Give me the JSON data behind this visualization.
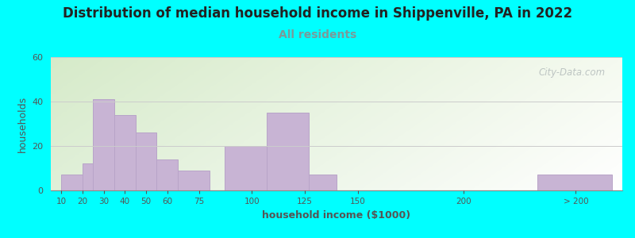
{
  "title": "Distribution of median household income in Shippenville, PA in 2022",
  "subtitle": "All residents",
  "xlabel": "household income ($1000)",
  "ylabel": "households",
  "background_outer": "#00FFFF",
  "bar_color": "#C8B4D4",
  "bar_edge_color": "#B8A4C8",
  "ylim": [
    0,
    60
  ],
  "yticks": [
    0,
    20,
    40,
    60
  ],
  "title_fontsize": 12,
  "subtitle_fontsize": 10,
  "axis_label_fontsize": 9,
  "watermark": "City-Data.com",
  "bar_lefts": [
    10,
    20,
    25,
    35,
    45,
    55,
    65,
    87,
    107,
    127,
    140,
    195,
    235
  ],
  "bar_rights": [
    20,
    25,
    35,
    45,
    55,
    65,
    80,
    107,
    127,
    140,
    160,
    220,
    270
  ],
  "bar_values": [
    7,
    12,
    41,
    34,
    26,
    14,
    9,
    20,
    35,
    7,
    0,
    0,
    7
  ],
  "xtick_positions_data": [
    10,
    20,
    30,
    40,
    50,
    60,
    75,
    100,
    125,
    150,
    200,
    253
  ],
  "xtick_labels": [
    "10",
    "20",
    "30",
    "40",
    "50",
    "60",
    "75",
    "100",
    "125",
    "150",
    "200",
    "> 200"
  ],
  "xlim": [
    5,
    275
  ]
}
